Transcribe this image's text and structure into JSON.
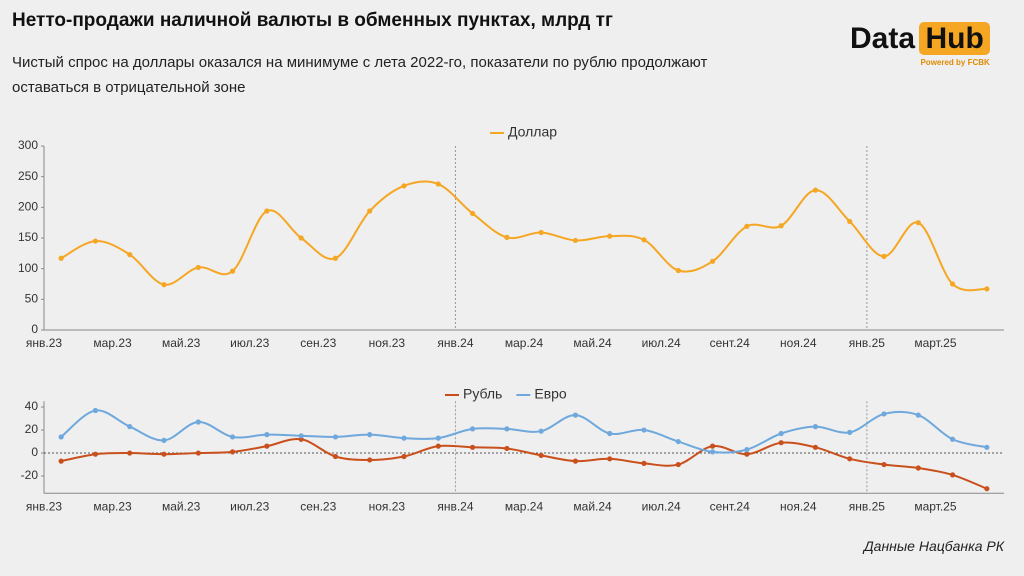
{
  "title": "Нетто-продажи наличной валюты в обменных пунктах, млрд тг",
  "subtitle": "Чистый спрос на доллары оказался на минимуме с лета 2022-го, показатели по рублю продолжают оставаться в отрицательной зоне",
  "source": "Данные Нацбанка РК",
  "logo": {
    "left": "Data",
    "right": "Hub",
    "tagline": "Powered by FCBK"
  },
  "chart_data": [
    {
      "type": "line",
      "categories": [
        "янв.23",
        null,
        "мар.23",
        null,
        "май.23",
        null,
        "июл.23",
        null,
        "сен.23",
        null,
        "ноя.23",
        null,
        "янв.24",
        null,
        "мар.24",
        null,
        "май.24",
        null,
        "июл.24",
        null,
        "сент.24",
        null,
        "ноя.24",
        null,
        "янв.25",
        null,
        "март.25",
        null
      ],
      "series": [
        {
          "name": "Доллар",
          "color": "#f5a623",
          "values": [
            117,
            145,
            123,
            74,
            102,
            96,
            194,
            150,
            117,
            194,
            235,
            238,
            190,
            151,
            159,
            146,
            153,
            147,
            97,
            112,
            169,
            170,
            228,
            177,
            120,
            175,
            75,
            67
          ]
        }
      ],
      "ylim": [
        0,
        300
      ],
      "yticks": [
        0,
        50,
        100,
        150,
        200,
        250,
        300
      ]
    },
    {
      "type": "line",
      "categories": [
        "янв.23",
        null,
        "мар.23",
        null,
        "май.23",
        null,
        "июл.23",
        null,
        "сен.23",
        null,
        "ноя.23",
        null,
        "янв.24",
        null,
        "мар.24",
        null,
        "май.24",
        null,
        "июл.24",
        null,
        "сент.24",
        null,
        "ноя.24",
        null,
        "янв.25",
        null,
        "март.25",
        null
      ],
      "series": [
        {
          "name": "Рубль",
          "color": "#c9501c",
          "values": [
            -7,
            -1,
            0,
            -1,
            0,
            1,
            6,
            12,
            -3,
            -6,
            -3,
            6,
            5,
            4,
            -2,
            -7,
            -5,
            -9,
            -10,
            6,
            -1,
            9,
            5,
            -5,
            -10,
            -13,
            -19,
            -31
          ]
        },
        {
          "name": "Евро",
          "color": "#6fa8dc",
          "values": [
            14,
            37,
            23,
            11,
            27,
            14,
            16,
            15,
            14,
            16,
            13,
            13,
            21,
            21,
            19,
            33,
            17,
            20,
            10,
            1,
            3,
            17,
            23,
            18,
            34,
            33,
            12,
            5
          ]
        }
      ],
      "ylim": [
        -35,
        45
      ],
      "yticks": [
        -20,
        0,
        20,
        40
      ]
    }
  ]
}
